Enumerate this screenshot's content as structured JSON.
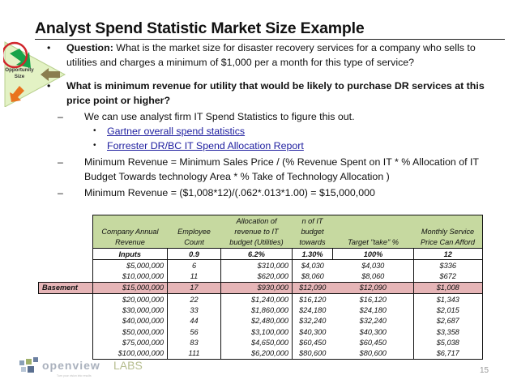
{
  "slide": {
    "title": "Analyst Spend Statistic Market Size Example",
    "page_number": "15"
  },
  "badge": {
    "label_line1": "Opportunity",
    "label_line2": "Size",
    "colors": {
      "triangle": "#e3f2c4",
      "circle": "#d0262c",
      "arrow_top": "#17a34a",
      "arrow_mid": "#8a7d4e",
      "arrow_bottom": "#e9731e"
    }
  },
  "bullets": {
    "q1_label": "Question:",
    "q1_text": " What is the market size for disaster recovery services for a company who sells to utilities and charges a minimum of $1,000 per a month for this type of service?",
    "q2_text": "What is minimum revenue for utility that would be likely to purchase DR services  at this price point or higher?",
    "sub1": "We can use analyst firm IT Spend Statistics to figure this out.",
    "link1": "Gartner overall spend statistics",
    "link2": "Forrester DR/BC IT Spend Allocation Report",
    "sub2": "Minimum Revenue = Minimum Sales Price / (% Revenue Spent on IT * % Allocation of IT Budget Towards technology Area * % Take of Technology Allocation )",
    "sub3": "Minimum Revenue = ($1,008*12)/(.062*.013*1.00) = $15,000,000",
    "bullet_glyph": "•",
    "dash_glyph": "–"
  },
  "table": {
    "headers": {
      "row1": [
        "",
        "",
        "",
        "Allocation of",
        "n of IT",
        "",
        ""
      ],
      "row2": [
        "",
        "Company Annual",
        "Employee",
        "revenue to IT",
        "budget",
        "",
        "Monthly Service"
      ],
      "row3": [
        "",
        "Revenue",
        "Count",
        "budget (Utilities)",
        "towards",
        "Target \"take\" %",
        "Price Can Afford"
      ]
    },
    "inputs": [
      "Inputs",
      "0.9",
      "6.2%",
      "1.30%",
      "100%",
      "12"
    ],
    "highlight_label": "Basement",
    "rows": [
      [
        "$5,000,000",
        "6",
        "$310,000",
        "$4,030",
        "$4,030",
        "$336"
      ],
      [
        "$10,000,000",
        "11",
        "$620,000",
        "$8,060",
        "$8,060",
        "$672"
      ],
      [
        "$15,000,000",
        "17",
        "$930,000",
        "$12,090",
        "$12,090",
        "$1,008"
      ],
      [
        "$20,000,000",
        "22",
        "$1,240,000",
        "$16,120",
        "$16,120",
        "$1,343"
      ],
      [
        "$30,000,000",
        "33",
        "$1,860,000",
        "$24,180",
        "$24,180",
        "$2,015"
      ],
      [
        "$40,000,000",
        "44",
        "$2,480,000",
        "$32,240",
        "$32,240",
        "$2,687"
      ],
      [
        "$50,000,000",
        "56",
        "$3,100,000",
        "$40,300",
        "$40,300",
        "$3,358"
      ],
      [
        "$75,000,000",
        "83",
        "$4,650,000",
        "$60,450",
        "$60,450",
        "$5,038"
      ],
      [
        "$100,000,000",
        "111",
        "$6,200,000",
        "$80,600",
        "$80,600",
        "$6,717"
      ]
    ],
    "colors": {
      "header_bg": "#c6d9a0",
      "highlight_bg": "#e6b5b7"
    }
  },
  "footer": {
    "logo_text_1": "openview",
    "logo_text_2": "LABS",
    "logo_tagline": "Turn your vision into results"
  }
}
